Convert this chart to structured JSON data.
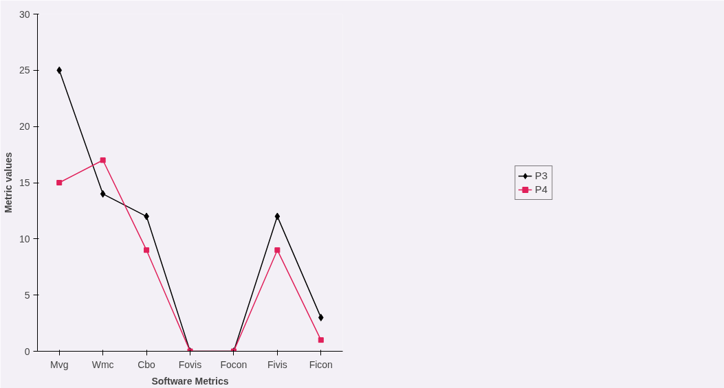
{
  "chart_data": {
    "type": "line",
    "xlabel": "Software Metrics",
    "ylabel": "Metric values",
    "categories": [
      "Mvg",
      "Wmc",
      "Cbo",
      "Fovis",
      "Focon",
      "Fivis",
      "Ficon"
    ],
    "series": [
      {
        "name": "P3",
        "color": "#000000",
        "marker": "diamond",
        "values": [
          25,
          14,
          12,
          0,
          0,
          12,
          3
        ]
      },
      {
        "name": "P4",
        "color": "#e0205a",
        "marker": "square",
        "values": [
          15,
          17,
          9,
          0,
          0,
          9,
          1
        ]
      }
    ],
    "ylim": [
      0,
      30
    ],
    "yticks": [
      0,
      5,
      10,
      15,
      20,
      25,
      30
    ],
    "grid": false,
    "legend": "right"
  }
}
